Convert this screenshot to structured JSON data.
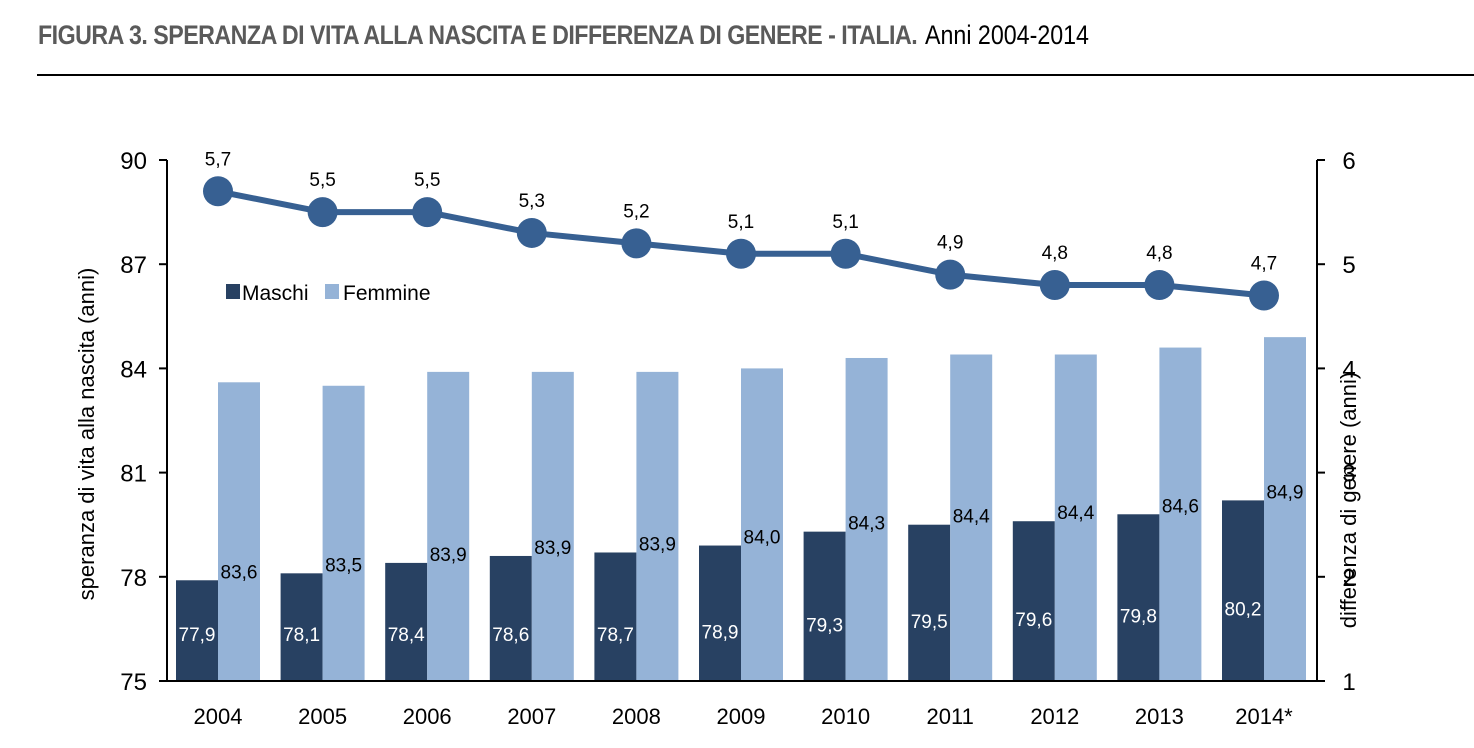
{
  "header": {
    "title_bold": "FIGURA 3. SPERANZA DI VITA ALLA NASCITA E DIFFERENZA DI GENERE - ITALIA.",
    "title_regular": "Anni 2004-2014"
  },
  "colors": {
    "maschi": "#284162",
    "femmine": "#95b3d7",
    "differenza": "#376092",
    "title": "#5a5a5a"
  },
  "chart_data": {
    "type": "bar+line",
    "title": "FIGURA 3. SPERANZA DI VITA ALLA NASCITA E DIFFERENZA DI GENERE - ITALIA. Anni 2004-2014",
    "categories": [
      "2004",
      "2005",
      "2006",
      "2007",
      "2008",
      "2009",
      "2010",
      "2011",
      "2012",
      "2013",
      "2014*"
    ],
    "series": [
      {
        "name": "Maschi",
        "type": "bar",
        "axis": "left",
        "values": [
          77.9,
          78.1,
          78.4,
          78.6,
          78.7,
          78.9,
          79.3,
          79.5,
          79.6,
          79.8,
          80.2
        ],
        "labels": [
          "77,9",
          "78,1",
          "78,4",
          "78,6",
          "78,7",
          "78,9",
          "79,3",
          "79,5",
          "79,6",
          "79,8",
          "80,2"
        ]
      },
      {
        "name": "Femmine",
        "type": "bar",
        "axis": "left",
        "values": [
          83.6,
          83.5,
          83.9,
          83.9,
          83.9,
          84.0,
          84.3,
          84.4,
          84.4,
          84.6,
          84.9
        ],
        "labels": [
          "83,6",
          "83,5",
          "83,9",
          "83,9",
          "83,9",
          "84,0",
          "84,3",
          "84,4",
          "84,4",
          "84,6",
          "84,9"
        ]
      },
      {
        "name": "Differenza di genere",
        "type": "line",
        "axis": "right",
        "values": [
          5.7,
          5.5,
          5.5,
          5.3,
          5.2,
          5.1,
          5.1,
          4.9,
          4.8,
          4.8,
          4.7
        ],
        "labels": [
          "5,7",
          "5,5",
          "5,5",
          "5,3",
          "5,2",
          "5,1",
          "5,1",
          "4,9",
          "4,8",
          "4,8",
          "4,7"
        ]
      }
    ],
    "ylabel": "speranza di vita alla nascita (anni)",
    "ylim": [
      75,
      90
    ],
    "yticks": [
      "75",
      "78",
      "81",
      "84",
      "87",
      "90"
    ],
    "y2label": "differenza di genere (anni)",
    "y2lim": [
      1,
      6
    ],
    "y2ticks": [
      "1",
      "2",
      "3",
      "4",
      "5",
      "6"
    ],
    "legend": {
      "position": "top-left",
      "entries": [
        "Maschi",
        "Femmine"
      ]
    },
    "grid": false
  }
}
